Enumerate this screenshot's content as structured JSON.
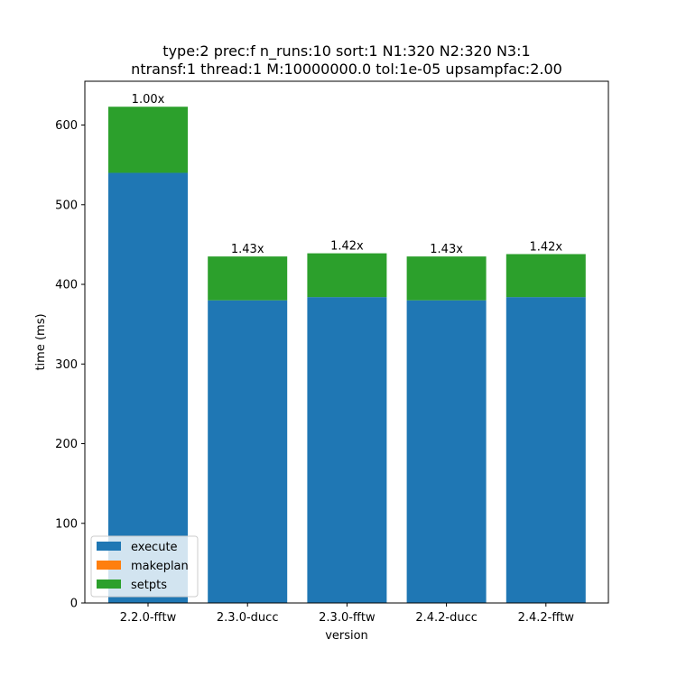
{
  "chart_data": {
    "type": "bar",
    "stacked": true,
    "title_lines": [
      "type:2 prec:f n_runs:10 sort:1 N1:320 N2:320 N3:1",
      "ntransf:1 thread:1 M:10000000.0 tol:1e-05 upsampfac:2.00"
    ],
    "xlabel": "version",
    "ylabel": "time (ms)",
    "categories": [
      "2.2.0-fftw",
      "2.3.0-ducc",
      "2.3.0-fftw",
      "2.4.2-ducc",
      "2.4.2-fftw"
    ],
    "ylim": [
      0,
      655
    ],
    "yticks": [
      0,
      100,
      200,
      300,
      400,
      500,
      600
    ],
    "grid": false,
    "legend_position": "lower-left",
    "series": [
      {
        "name": "execute",
        "color": "#1f77b4",
        "values": [
          540,
          380,
          384,
          380,
          384
        ]
      },
      {
        "name": "makeplan",
        "color": "#ff7f0e",
        "values": [
          0,
          0,
          0,
          0,
          0
        ]
      },
      {
        "name": "setpts",
        "color": "#2ca02c",
        "values": [
          83,
          55,
          55,
          55,
          54
        ]
      }
    ],
    "bar_labels": [
      "1.00x",
      "1.43x",
      "1.42x",
      "1.43x",
      "1.42x"
    ]
  }
}
